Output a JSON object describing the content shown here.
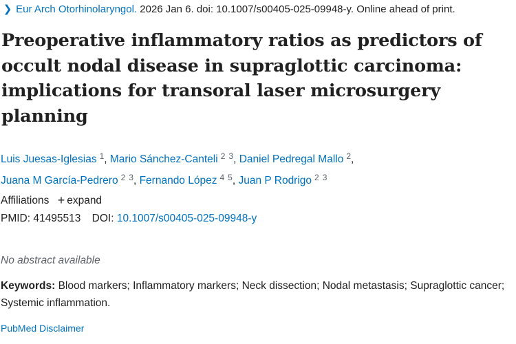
{
  "citation": {
    "journal": "Eur Arch Otorhinolaryngol.",
    "details": "2026 Jan 6. doi: 10.1007/s00405-025-09948-y. Online ahead of print."
  },
  "title": "Preoperative inflammatory ratios as predictors of occult nodal disease in supraglottic carcinoma: implications for transoral laser microsurgery planning",
  "authors": [
    {
      "name": "Luis Juesas-Iglesias",
      "affs": [
        "1"
      ]
    },
    {
      "name": "Mario Sánchez-Canteli",
      "affs": [
        "2",
        "3"
      ]
    },
    {
      "name": "Daniel Pedregal Mallo",
      "affs": [
        "2"
      ]
    },
    {
      "name": "Juana M García-Pedrero",
      "affs": [
        "2",
        "3"
      ]
    },
    {
      "name": "Fernando López",
      "affs": [
        "4",
        "5"
      ]
    },
    {
      "name": "Juan P Rodrigo",
      "affs": [
        "2",
        "3"
      ]
    }
  ],
  "affiliations": {
    "label": "Affiliations",
    "expand_label": "expand"
  },
  "ids": {
    "pmid_label": "PMID:",
    "pmid": "41495513",
    "doi_label": "DOI:",
    "doi": "10.1007/s00405-025-09948-y"
  },
  "abstract": {
    "empty_text": "No abstract available"
  },
  "keywords": {
    "label": "Keywords:",
    "text": "Blood markers; Inflammatory markers; Neck dissection; Nodal metastasis; Supraglottic cancer; Systemic inflammation."
  },
  "disclaimer": {
    "label": "PubMed Disclaimer"
  },
  "icons": {
    "chevron": "chevron-right-icon",
    "plus": "plus-icon"
  },
  "colors": {
    "link": "#0071bc",
    "text": "#212121",
    "muted": "#5b616b"
  }
}
